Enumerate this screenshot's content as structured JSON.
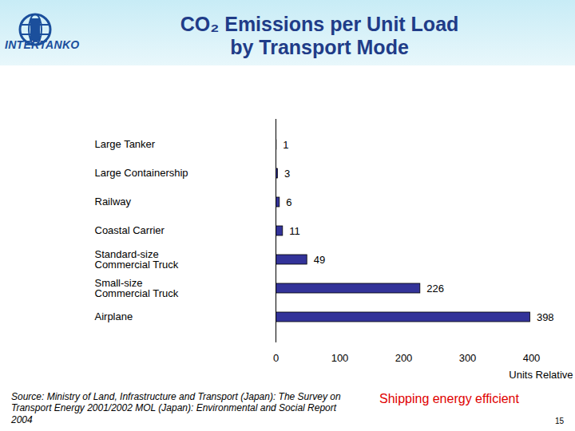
{
  "chart_data": {
    "type": "bar",
    "title": "CO₂ Emissions per Unit Load\nby Transport Mode",
    "orientation": "horizontal",
    "categories": [
      "Large Tanker",
      "Large Containership",
      "Railway",
      "Coastal Carrier",
      "Standard-size\nCommercial Truck",
      "Small-size\nCommercial Truck",
      "Airplane"
    ],
    "values": [
      1,
      3,
      6,
      11,
      49,
      226,
      398
    ],
    "color": "#333399",
    "data_labels": true,
    "xlim": [
      0,
      400
    ],
    "xticks": [
      0,
      100,
      200,
      300,
      400
    ],
    "x_label": "Units Relative",
    "logo": "INTERTANKO",
    "source": "Source: Ministry of Land, Infrastructure and Transport (Japan): The Survey on Transport Energy 2001/2002 MOL (Japan): Environmental and Social Report 2004",
    "annotation": "Shipping energy efficient",
    "page": 15
  }
}
